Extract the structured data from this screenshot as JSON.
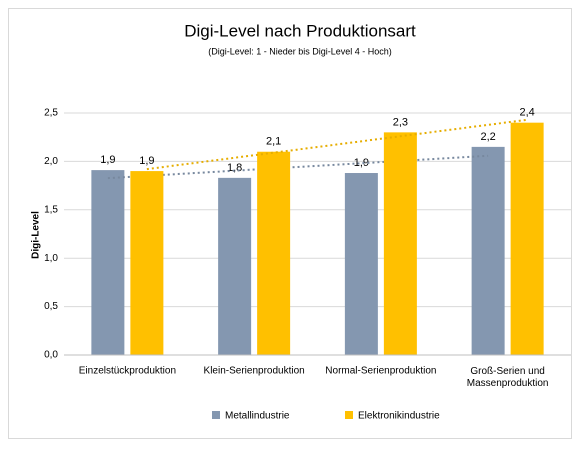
{
  "chart_data": {
    "type": "bar",
    "title": "Digi-Level nach Produktionsart",
    "subtitle": "(Digi-Level:  1 - Nieder bis Digi-Level 4 - Hoch)",
    "y_label": "Digi-Level",
    "categories": [
      "Einzelstückproduktion",
      "Klein-Serienproduktion",
      "Normal-Serienproduktion",
      "Groß-Serien und\nMassenproduktion"
    ],
    "series": [
      {
        "name": "Metallindustrie",
        "color": "#8497b0",
        "values": [
          1.91,
          1.83,
          1.88,
          2.15
        ],
        "value_labels": [
          "1,9",
          "1,8",
          "1,9",
          "2,2"
        ]
      },
      {
        "name": "Elektronikindustrie",
        "color": "#ffc000",
        "values": [
          1.9,
          2.1,
          2.3,
          2.4
        ],
        "value_labels": [
          "1,9",
          "2,1",
          "2,3",
          "2,4"
        ]
      }
    ],
    "ylim": [
      0,
      2.5
    ],
    "yticks": [
      {
        "value": 0,
        "label": "0,0"
      },
      {
        "value": 0.5,
        "label": "0,5"
      },
      {
        "value": 1,
        "label": "1,0"
      },
      {
        "value": 1.5,
        "label": "1,5"
      },
      {
        "value": 2,
        "label": "2,0"
      },
      {
        "value": 2.5,
        "label": "2,5"
      }
    ],
    "grid": true,
    "trendline": true,
    "legend": "bottom"
  }
}
